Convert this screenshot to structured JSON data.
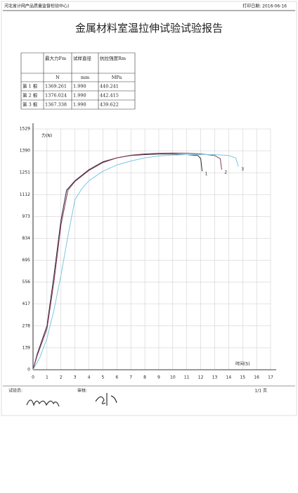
{
  "header": {
    "org": "河北省计网产品质量监督检验中心)",
    "print_date": "打印日期: 2016-06-16"
  },
  "title": "金属材料室温拉伸试验试验报告",
  "table": {
    "columns": [
      "最大力Fm",
      "试样直径",
      "抗拉强度Rm"
    ],
    "units": [
      "N",
      "mm",
      "MPa"
    ],
    "rows": [
      [
        "第 1 根",
        "1369.261",
        "1.990",
        "440.241"
      ],
      [
        "第 2 根",
        "1376.024",
        "1.990",
        "442.415"
      ],
      [
        "第 3 根",
        "1367.338",
        "1.990",
        "439.622"
      ]
    ]
  },
  "chart_data": {
    "type": "line",
    "y_label": "力(N)",
    "x_label": "时间(S)",
    "xlim": [
      0,
      17
    ],
    "xticks": [
      0,
      1,
      2,
      3,
      4,
      5,
      6,
      7,
      8,
      9,
      10,
      11,
      12,
      13,
      14,
      15,
      16,
      17
    ],
    "ylim": [
      0,
      1529
    ],
    "yticks": [
      0,
      139,
      278,
      417,
      556,
      695,
      834,
      973,
      1112,
      1251,
      1390,
      1529
    ],
    "grid": true,
    "series": [
      {
        "name": "1",
        "color": "#2a2a3a",
        "x": [
          0,
          0.3,
          1,
          1.5,
          2,
          2.4,
          3,
          4,
          5,
          6,
          7,
          8,
          9,
          10,
          11,
          11.8,
          12,
          12.1
        ],
        "values": [
          0,
          100,
          280,
          600,
          950,
          1140,
          1200,
          1270,
          1320,
          1345,
          1360,
          1366,
          1369,
          1369,
          1366,
          1360,
          1340,
          1260
        ]
      },
      {
        "name": "2",
        "color": "#8a3a5a",
        "x": [
          0,
          0.3,
          1,
          1.5,
          2,
          2.5,
          3,
          4,
          5,
          6,
          7,
          8,
          9,
          10,
          11,
          12,
          13,
          13.4,
          13.5
        ],
        "values": [
          0,
          90,
          260,
          560,
          920,
          1140,
          1195,
          1265,
          1315,
          1345,
          1362,
          1370,
          1374,
          1376,
          1375,
          1370,
          1360,
          1340,
          1270
        ]
      },
      {
        "name": "3",
        "color": "#7cc8e0",
        "x": [
          0,
          0.5,
          1,
          1.5,
          2,
          2.5,
          3,
          3.5,
          4,
          5,
          6,
          7,
          8,
          9,
          10,
          11,
          12,
          13,
          14,
          14.5,
          14.7
        ],
        "values": [
          0,
          80,
          200,
          380,
          600,
          850,
          1080,
          1150,
          1200,
          1260,
          1300,
          1325,
          1345,
          1357,
          1363,
          1366,
          1367,
          1366,
          1360,
          1345,
          1290
        ]
      }
    ]
  },
  "footer": {
    "tester": "试验员:",
    "reviewer": "审核:",
    "page": "1/1 页"
  }
}
